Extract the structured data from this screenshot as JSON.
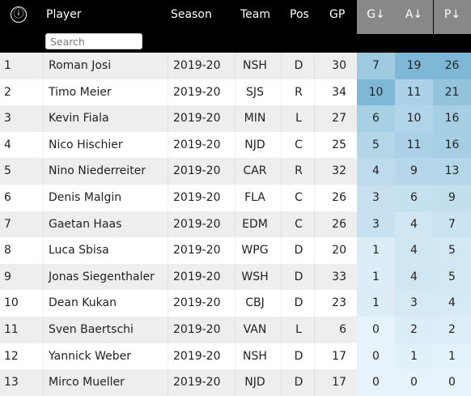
{
  "header": {
    "info_icon": "ⓘ",
    "player_label": "Player",
    "season_label": "Season",
    "team_label": "Team",
    "pos_label": "Pos",
    "gp_label": "GP",
    "g_label": "G↓",
    "a_label": "A↓",
    "p_label": "P↓",
    "search_placeholder": "Search"
  },
  "colors": {
    "header_bg": "#000000",
    "sort_header_bg": "#888888",
    "row_odd": "#eeeeee",
    "row_even": "#ffffff",
    "heat_low": "#e6f3fb",
    "heat_high": "#7fb8d6"
  },
  "rows": [
    {
      "rank": "1",
      "player": "Roman Josi",
      "season": "2019-20",
      "team": "NSH",
      "pos": "D",
      "gp": "30",
      "g": "7",
      "a": "19",
      "p": "26"
    },
    {
      "rank": "2",
      "player": "Timo Meier",
      "season": "2019-20",
      "team": "SJS",
      "pos": "R",
      "gp": "34",
      "g": "10",
      "a": "11",
      "p": "21"
    },
    {
      "rank": "3",
      "player": "Kevin Fiala",
      "season": "2019-20",
      "team": "MIN",
      "pos": "L",
      "gp": "27",
      "g": "6",
      "a": "10",
      "p": "16"
    },
    {
      "rank": "4",
      "player": "Nico Hischier",
      "season": "2019-20",
      "team": "NJD",
      "pos": "C",
      "gp": "25",
      "g": "5",
      "a": "11",
      "p": "16"
    },
    {
      "rank": "5",
      "player": "Nino Niederreiter",
      "season": "2019-20",
      "team": "CAR",
      "pos": "R",
      "gp": "32",
      "g": "4",
      "a": "9",
      "p": "13"
    },
    {
      "rank": "6",
      "player": "Denis Malgin",
      "season": "2019-20",
      "team": "FLA",
      "pos": "C",
      "gp": "26",
      "g": "3",
      "a": "6",
      "p": "9"
    },
    {
      "rank": "7",
      "player": "Gaetan Haas",
      "season": "2019-20",
      "team": "EDM",
      "pos": "C",
      "gp": "26",
      "g": "3",
      "a": "4",
      "p": "7"
    },
    {
      "rank": "8",
      "player": "Luca Sbisa",
      "season": "2019-20",
      "team": "WPG",
      "pos": "D",
      "gp": "20",
      "g": "1",
      "a": "4",
      "p": "5"
    },
    {
      "rank": "9",
      "player": "Jonas Siegenthaler",
      "season": "2019-20",
      "team": "WSH",
      "pos": "D",
      "gp": "33",
      "g": "1",
      "a": "4",
      "p": "5"
    },
    {
      "rank": "10",
      "player": "Dean Kukan",
      "season": "2019-20",
      "team": "CBJ",
      "pos": "D",
      "gp": "23",
      "g": "1",
      "a": "3",
      "p": "4"
    },
    {
      "rank": "11",
      "player": "Sven Baertschi",
      "season": "2019-20",
      "team": "VAN",
      "pos": "L",
      "gp": "6",
      "g": "0",
      "a": "2",
      "p": "2"
    },
    {
      "rank": "12",
      "player": "Yannick Weber",
      "season": "2019-20",
      "team": "NSH",
      "pos": "D",
      "gp": "17",
      "g": "0",
      "a": "1",
      "p": "1"
    },
    {
      "rank": "13",
      "player": "Mirco Mueller",
      "season": "2019-20",
      "team": "NJD",
      "pos": "D",
      "gp": "17",
      "g": "0",
      "a": "0",
      "p": "0"
    }
  ]
}
